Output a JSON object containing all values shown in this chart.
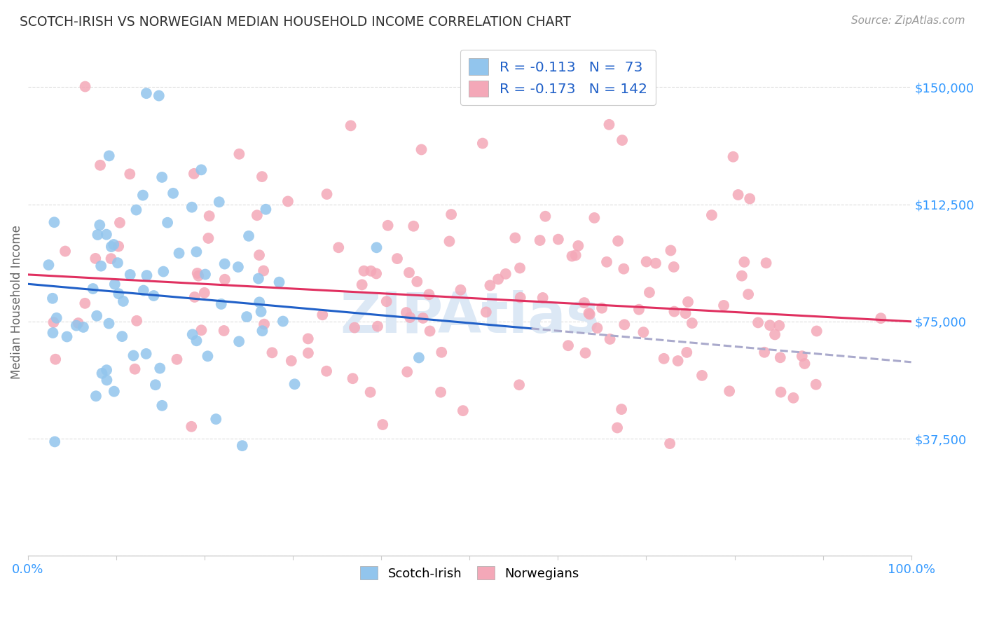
{
  "title": "SCOTCH-IRISH VS NORWEGIAN MEDIAN HOUSEHOLD INCOME CORRELATION CHART",
  "source": "Source: ZipAtlas.com",
  "ylabel": "Median Household Income",
  "yticks": [
    0,
    37500,
    75000,
    112500,
    150000
  ],
  "ytick_labels": [
    "",
    "$37,500",
    "$75,000",
    "$112,500",
    "$150,000"
  ],
  "xlim": [
    0.0,
    1.0
  ],
  "ylim": [
    10000,
    162500
  ],
  "blue_color": "#92C5ED",
  "pink_color": "#F4A8B8",
  "trendline_blue": "#2060C8",
  "trendline_pink": "#E03060",
  "trendline_dashed_color": "#AAAACC",
  "legend_text_color": "#2060C8",
  "background_color": "#FFFFFF",
  "grid_color": "#DDDDDD",
  "watermark_color": "#DCE8F5",
  "right_label_color": "#3399FF",
  "xtick_label_color": "#3399FF",
  "title_color": "#333333",
  "ylabel_color": "#666666",
  "source_color": "#999999"
}
